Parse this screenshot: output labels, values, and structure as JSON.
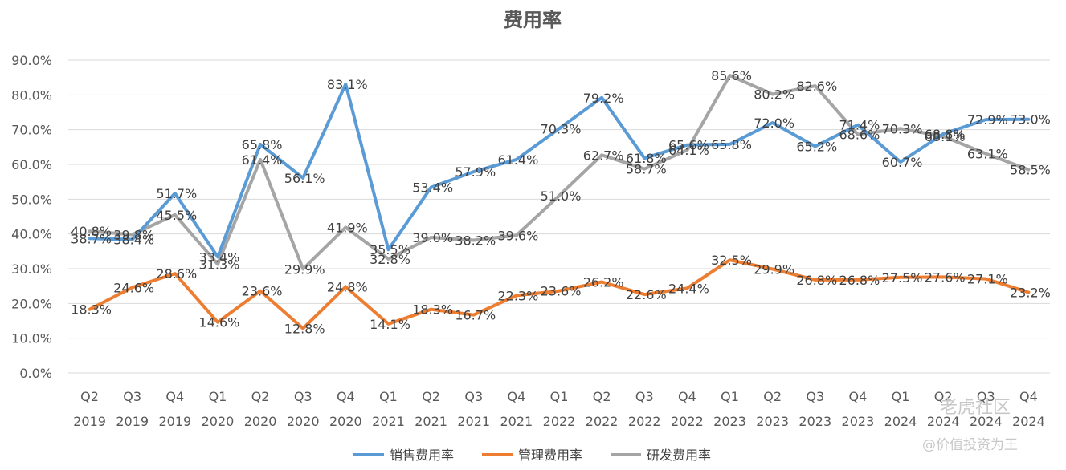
{
  "chart_data": {
    "type": "line",
    "title": "费用率",
    "xlabel": "",
    "ylabel": "",
    "ylim": [
      0,
      90
    ],
    "y_ticks": [
      "0.0%",
      "10.0%",
      "20.0%",
      "30.0%",
      "40.0%",
      "50.0%",
      "60.0%",
      "70.0%",
      "80.0%",
      "90.0%"
    ],
    "grid": true,
    "legend_position": "bottom",
    "categories": [
      [
        "Q2",
        "2019"
      ],
      [
        "Q3",
        "2019"
      ],
      [
        "Q4",
        "2019"
      ],
      [
        "Q1",
        "2020"
      ],
      [
        "Q2",
        "2020"
      ],
      [
        "Q3",
        "2020"
      ],
      [
        "Q4",
        "2020"
      ],
      [
        "Q1",
        "2021"
      ],
      [
        "Q2",
        "2021"
      ],
      [
        "Q3",
        "2021"
      ],
      [
        "Q4",
        "2021"
      ],
      [
        "Q1",
        "2022"
      ],
      [
        "Q2",
        "2022"
      ],
      [
        "Q3",
        "2022"
      ],
      [
        "Q4",
        "2022"
      ],
      [
        "Q1",
        "2023"
      ],
      [
        "Q2",
        "2023"
      ],
      [
        "Q3",
        "2023"
      ],
      [
        "Q4",
        "2023"
      ],
      [
        "Q1",
        "2024"
      ],
      [
        "Q2",
        "2024"
      ],
      [
        "Q3",
        "2024"
      ],
      [
        "Q4",
        "2024"
      ]
    ],
    "series": [
      {
        "name": "销售费用率",
        "color": "#5b9bd5",
        "values": [
          38.7,
          38.4,
          51.7,
          33.4,
          65.8,
          56.1,
          83.1,
          35.5,
          53.4,
          57.9,
          61.4,
          70.3,
          79.2,
          61.8,
          65.6,
          65.8,
          72.0,
          65.2,
          71.4,
          60.7,
          68.8,
          72.9,
          73.0
        ]
      },
      {
        "name": "管理费用率",
        "color": "#ed7d31",
        "values": [
          18.3,
          24.6,
          28.6,
          14.6,
          23.6,
          12.8,
          24.8,
          14.1,
          18.3,
          16.7,
          22.3,
          23.6,
          26.2,
          22.6,
          24.4,
          32.5,
          29.9,
          26.8,
          26.8,
          27.5,
          27.6,
          27.1,
          23.2
        ]
      },
      {
        "name": "研发费用率",
        "color": "#a5a5a5",
        "values": [
          40.8,
          39.8,
          45.5,
          31.3,
          61.4,
          29.9,
          41.9,
          32.8,
          39.0,
          38.2,
          39.6,
          51.0,
          62.7,
          58.7,
          64.1,
          85.6,
          80.2,
          82.6,
          68.6,
          70.3,
          68.1,
          63.1,
          58.5
        ]
      }
    ]
  },
  "watermark": {
    "brand": "老虎社区",
    "handle": "@价值投资为王"
  }
}
